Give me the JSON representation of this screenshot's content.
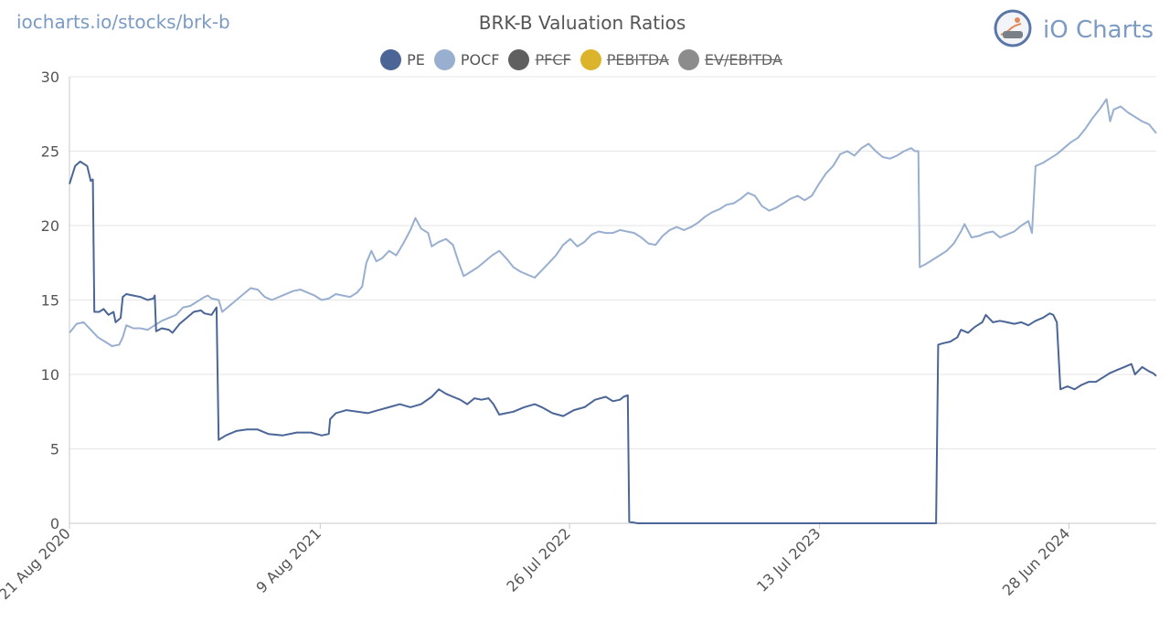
{
  "header": {
    "site_link": "iocharts.io/stocks/brk-b",
    "brand": "iO Charts"
  },
  "colors": {
    "pe": "#4a6596",
    "pocf": "#98afd0",
    "pfcf": "#5f5f5f",
    "pebitda": "#dcb42c",
    "evebitda": "#8c8c8c",
    "grid": "#e6e6e6",
    "axis": "#c8c8c8"
  },
  "chart_data": {
    "type": "line",
    "title": "BRK-B Valuation Ratios",
    "ylim": [
      0,
      30
    ],
    "yticks": [
      0,
      5,
      10,
      15,
      20,
      25,
      30
    ],
    "xrange": [
      0,
      1530
    ],
    "xticks": [
      {
        "x": 0,
        "label": "21 Aug 2020"
      },
      {
        "x": 353,
        "label": "9 Aug 2021"
      },
      {
        "x": 704,
        "label": "26 Jul 2022"
      },
      {
        "x": 1056,
        "label": "13 Jul 2023"
      },
      {
        "x": 1407,
        "label": "28 Jun 2024"
      }
    ],
    "legend": [
      {
        "key": "pe",
        "label": "PE",
        "active": true
      },
      {
        "key": "pocf",
        "label": "POCF",
        "active": true
      },
      {
        "key": "pfcf",
        "label": "PFCF",
        "active": false
      },
      {
        "key": "pebitda",
        "label": "PEBITDA",
        "active": false
      },
      {
        "key": "evebitda",
        "label": "EV/EBITDA",
        "active": false
      }
    ],
    "series": [
      {
        "name": "PE",
        "key": "pe",
        "points": [
          [
            0,
            22.8
          ],
          [
            8,
            24.0
          ],
          [
            15,
            24.3
          ],
          [
            25,
            24.0
          ],
          [
            30,
            23.0
          ],
          [
            33,
            23.1
          ],
          [
            35,
            14.2
          ],
          [
            42,
            14.2
          ],
          [
            48,
            14.4
          ],
          [
            55,
            14.0
          ],
          [
            62,
            14.2
          ],
          [
            65,
            13.5
          ],
          [
            72,
            13.8
          ],
          [
            75,
            15.2
          ],
          [
            80,
            15.4
          ],
          [
            90,
            15.3
          ],
          [
            100,
            15.2
          ],
          [
            110,
            15.0
          ],
          [
            118,
            15.1
          ],
          [
            120,
            15.3
          ],
          [
            122,
            12.9
          ],
          [
            130,
            13.1
          ],
          [
            140,
            13.0
          ],
          [
            145,
            12.8
          ],
          [
            155,
            13.4
          ],
          [
            165,
            13.8
          ],
          [
            175,
            14.2
          ],
          [
            185,
            14.3
          ],
          [
            190,
            14.1
          ],
          [
            200,
            14.0
          ],
          [
            207,
            14.5
          ],
          [
            210,
            5.6
          ],
          [
            220,
            5.9
          ],
          [
            235,
            6.2
          ],
          [
            250,
            6.3
          ],
          [
            265,
            6.3
          ],
          [
            280,
            6.0
          ],
          [
            300,
            5.9
          ],
          [
            320,
            6.1
          ],
          [
            340,
            6.1
          ],
          [
            355,
            5.9
          ],
          [
            365,
            6.0
          ],
          [
            367,
            7.0
          ],
          [
            375,
            7.4
          ],
          [
            390,
            7.6
          ],
          [
            405,
            7.5
          ],
          [
            420,
            7.4
          ],
          [
            435,
            7.6
          ],
          [
            450,
            7.8
          ],
          [
            465,
            8.0
          ],
          [
            480,
            7.8
          ],
          [
            495,
            8.0
          ],
          [
            510,
            8.5
          ],
          [
            520,
            9.0
          ],
          [
            530,
            8.7
          ],
          [
            540,
            8.5
          ],
          [
            550,
            8.3
          ],
          [
            560,
            8.0
          ],
          [
            570,
            8.4
          ],
          [
            580,
            8.3
          ],
          [
            590,
            8.4
          ],
          [
            597,
            8.0
          ],
          [
            605,
            7.3
          ],
          [
            615,
            7.4
          ],
          [
            625,
            7.5
          ],
          [
            640,
            7.8
          ],
          [
            655,
            8.0
          ],
          [
            665,
            7.8
          ],
          [
            680,
            7.4
          ],
          [
            695,
            7.2
          ],
          [
            710,
            7.6
          ],
          [
            725,
            7.8
          ],
          [
            740,
            8.3
          ],
          [
            755,
            8.5
          ],
          [
            765,
            8.2
          ],
          [
            775,
            8.3
          ],
          [
            780,
            8.5
          ],
          [
            786,
            8.6
          ],
          [
            788,
            0.1
          ],
          [
            800,
            0.0
          ],
          [
            1000,
            0.0
          ],
          [
            1220,
            0.0
          ],
          [
            1223,
            12.0
          ],
          [
            1230,
            12.1
          ],
          [
            1240,
            12.2
          ],
          [
            1250,
            12.5
          ],
          [
            1255,
            13.0
          ],
          [
            1265,
            12.8
          ],
          [
            1275,
            13.2
          ],
          [
            1285,
            13.5
          ],
          [
            1290,
            14.0
          ],
          [
            1300,
            13.5
          ],
          [
            1310,
            13.6
          ],
          [
            1320,
            13.5
          ],
          [
            1330,
            13.4
          ],
          [
            1340,
            13.5
          ],
          [
            1350,
            13.3
          ],
          [
            1360,
            13.6
          ],
          [
            1370,
            13.8
          ],
          [
            1380,
            14.1
          ],
          [
            1385,
            14.0
          ],
          [
            1390,
            13.5
          ],
          [
            1395,
            9.0
          ],
          [
            1405,
            9.2
          ],
          [
            1415,
            9.0
          ],
          [
            1425,
            9.3
          ],
          [
            1435,
            9.5
          ],
          [
            1445,
            9.5
          ],
          [
            1455,
            9.8
          ],
          [
            1465,
            10.1
          ],
          [
            1475,
            10.3
          ],
          [
            1485,
            10.5
          ],
          [
            1495,
            10.7
          ],
          [
            1500,
            10.0
          ],
          [
            1510,
            10.5
          ],
          [
            1520,
            10.2
          ],
          [
            1525,
            10.1
          ],
          [
            1530,
            9.9
          ]
        ]
      },
      {
        "name": "POCF",
        "key": "pocf",
        "points": [
          [
            0,
            12.8
          ],
          [
            10,
            13.4
          ],
          [
            20,
            13.5
          ],
          [
            30,
            13.0
          ],
          [
            40,
            12.5
          ],
          [
            50,
            12.2
          ],
          [
            60,
            11.9
          ],
          [
            70,
            12.0
          ],
          [
            75,
            12.5
          ],
          [
            80,
            13.3
          ],
          [
            90,
            13.1
          ],
          [
            100,
            13.1
          ],
          [
            110,
            13.0
          ],
          [
            120,
            13.3
          ],
          [
            130,
            13.6
          ],
          [
            140,
            13.8
          ],
          [
            150,
            14.0
          ],
          [
            160,
            14.5
          ],
          [
            170,
            14.6
          ],
          [
            180,
            14.9
          ],
          [
            190,
            15.2
          ],
          [
            195,
            15.3
          ],
          [
            200,
            15.1
          ],
          [
            210,
            15.0
          ],
          [
            215,
            14.2
          ],
          [
            225,
            14.6
          ],
          [
            235,
            15.0
          ],
          [
            245,
            15.4
          ],
          [
            255,
            15.8
          ],
          [
            265,
            15.7
          ],
          [
            275,
            15.2
          ],
          [
            285,
            15.0
          ],
          [
            300,
            15.3
          ],
          [
            315,
            15.6
          ],
          [
            325,
            15.7
          ],
          [
            335,
            15.5
          ],
          [
            345,
            15.3
          ],
          [
            355,
            15.0
          ],
          [
            365,
            15.1
          ],
          [
            375,
            15.4
          ],
          [
            385,
            15.3
          ],
          [
            395,
            15.2
          ],
          [
            405,
            15.5
          ],
          [
            412,
            15.9
          ],
          [
            418,
            17.5
          ],
          [
            425,
            18.3
          ],
          [
            432,
            17.6
          ],
          [
            440,
            17.8
          ],
          [
            450,
            18.3
          ],
          [
            460,
            18.0
          ],
          [
            470,
            18.8
          ],
          [
            480,
            19.7
          ],
          [
            487,
            20.5
          ],
          [
            495,
            19.8
          ],
          [
            505,
            19.5
          ],
          [
            510,
            18.6
          ],
          [
            520,
            18.9
          ],
          [
            530,
            19.1
          ],
          [
            540,
            18.7
          ],
          [
            548,
            17.5
          ],
          [
            555,
            16.6
          ],
          [
            565,
            16.9
          ],
          [
            575,
            17.2
          ],
          [
            585,
            17.6
          ],
          [
            595,
            18.0
          ],
          [
            605,
            18.3
          ],
          [
            615,
            17.8
          ],
          [
            625,
            17.2
          ],
          [
            635,
            16.9
          ],
          [
            645,
            16.7
          ],
          [
            655,
            16.5
          ],
          [
            665,
            17.0
          ],
          [
            675,
            17.5
          ],
          [
            685,
            18.0
          ],
          [
            695,
            18.7
          ],
          [
            705,
            19.1
          ],
          [
            715,
            18.6
          ],
          [
            725,
            18.9
          ],
          [
            735,
            19.4
          ],
          [
            745,
            19.6
          ],
          [
            755,
            19.5
          ],
          [
            765,
            19.5
          ],
          [
            775,
            19.7
          ],
          [
            785,
            19.6
          ],
          [
            795,
            19.5
          ],
          [
            805,
            19.2
          ],
          [
            815,
            18.8
          ],
          [
            825,
            18.7
          ],
          [
            835,
            19.3
          ],
          [
            845,
            19.7
          ],
          [
            855,
            19.9
          ],
          [
            865,
            19.7
          ],
          [
            875,
            19.9
          ],
          [
            885,
            20.2
          ],
          [
            895,
            20.6
          ],
          [
            905,
            20.9
          ],
          [
            915,
            21.1
          ],
          [
            925,
            21.4
          ],
          [
            935,
            21.5
          ],
          [
            945,
            21.8
          ],
          [
            955,
            22.2
          ],
          [
            965,
            22.0
          ],
          [
            975,
            21.3
          ],
          [
            985,
            21.0
          ],
          [
            995,
            21.2
          ],
          [
            1005,
            21.5
          ],
          [
            1015,
            21.8
          ],
          [
            1025,
            22.0
          ],
          [
            1035,
            21.7
          ],
          [
            1045,
            22.0
          ],
          [
            1055,
            22.8
          ],
          [
            1065,
            23.5
          ],
          [
            1075,
            24.0
          ],
          [
            1085,
            24.8
          ],
          [
            1095,
            25.0
          ],
          [
            1105,
            24.7
          ],
          [
            1115,
            25.2
          ],
          [
            1125,
            25.5
          ],
          [
            1135,
            25.0
          ],
          [
            1145,
            24.6
          ],
          [
            1155,
            24.5
          ],
          [
            1165,
            24.7
          ],
          [
            1175,
            25.0
          ],
          [
            1185,
            25.2
          ],
          [
            1190,
            25.0
          ],
          [
            1195,
            25.0
          ],
          [
            1197,
            17.2
          ],
          [
            1205,
            17.4
          ],
          [
            1215,
            17.7
          ],
          [
            1225,
            18.0
          ],
          [
            1235,
            18.3
          ],
          [
            1245,
            18.8
          ],
          [
            1255,
            19.6
          ],
          [
            1260,
            20.1
          ],
          [
            1270,
            19.2
          ],
          [
            1280,
            19.3
          ],
          [
            1290,
            19.5
          ],
          [
            1300,
            19.6
          ],
          [
            1310,
            19.2
          ],
          [
            1320,
            19.4
          ],
          [
            1330,
            19.6
          ],
          [
            1340,
            20.0
          ],
          [
            1350,
            20.3
          ],
          [
            1355,
            19.5
          ],
          [
            1360,
            24.0
          ],
          [
            1370,
            24.2
          ],
          [
            1380,
            24.5
          ],
          [
            1390,
            24.8
          ],
          [
            1400,
            25.2
          ],
          [
            1410,
            25.6
          ],
          [
            1420,
            25.9
          ],
          [
            1430,
            26.5
          ],
          [
            1440,
            27.2
          ],
          [
            1450,
            27.8
          ],
          [
            1460,
            28.5
          ],
          [
            1465,
            27.0
          ],
          [
            1470,
            27.8
          ],
          [
            1480,
            28.0
          ],
          [
            1490,
            27.6
          ],
          [
            1500,
            27.3
          ],
          [
            1510,
            27.0
          ],
          [
            1520,
            26.8
          ],
          [
            1525,
            26.5
          ],
          [
            1530,
            26.2
          ]
        ]
      }
    ]
  }
}
